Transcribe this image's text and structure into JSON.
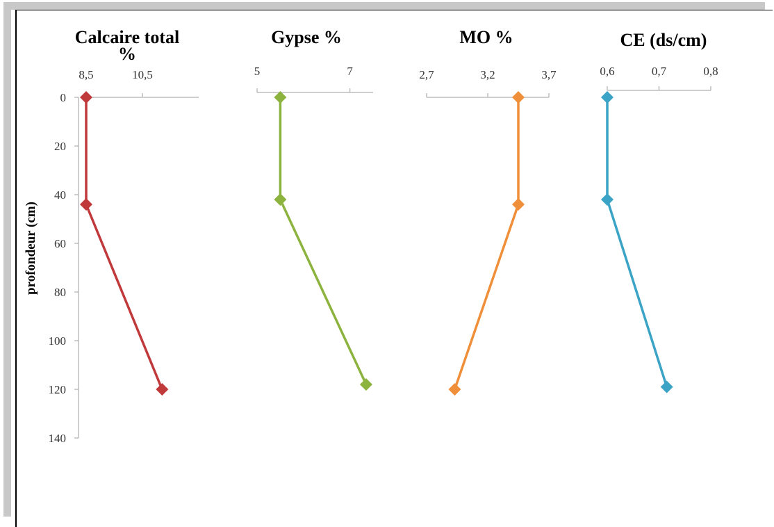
{
  "chart_data": {
    "type": "line",
    "ylabel": "profondeur (cm)",
    "yticks": [
      "0",
      "20",
      "40",
      "60",
      "80",
      "100",
      "120",
      "140"
    ],
    "ylim": [
      0,
      140
    ],
    "y_inverted": true,
    "panels": [
      {
        "title_lines": [
          "Calcaire total",
          "%"
        ],
        "xticks": [
          "8,5",
          "10,5"
        ],
        "xtick_values": [
          8.5,
          10.5
        ],
        "xlim": [
          8.5,
          12.5
        ],
        "color": "#c0393b",
        "points": [
          {
            "x": 8.5,
            "y": 0
          },
          {
            "x": 8.5,
            "y": 44
          },
          {
            "x": 11.2,
            "y": 120
          }
        ]
      },
      {
        "title_lines": [
          "Gypse %"
        ],
        "xticks": [
          "5",
          "7"
        ],
        "xtick_values": [
          5,
          7
        ],
        "xlim": [
          5,
          7.5
        ],
        "color": "#8db33f",
        "points": [
          {
            "x": 5.5,
            "y": 0
          },
          {
            "x": 5.5,
            "y": 42
          },
          {
            "x": 7.35,
            "y": 118
          }
        ]
      },
      {
        "title_lines": [
          "MO %"
        ],
        "xticks": [
          "2,7",
          "3,2",
          "3,7"
        ],
        "xtick_values": [
          2.7,
          3.2,
          3.7
        ],
        "xlim": [
          2.7,
          3.7
        ],
        "color": "#f08f3a",
        "points": [
          {
            "x": 3.45,
            "y": 0
          },
          {
            "x": 3.45,
            "y": 44
          },
          {
            "x": 2.93,
            "y": 120
          }
        ]
      },
      {
        "title_lines": [
          "CE (ds/cm)"
        ],
        "xticks": [
          "0,6",
          "0,7",
          "0,8"
        ],
        "xtick_values": [
          0.6,
          0.7,
          0.8
        ],
        "xlim": [
          0.6,
          0.8
        ],
        "color": "#3aa3c6",
        "points": [
          {
            "x": 0.6,
            "y": 0
          },
          {
            "x": 0.6,
            "y": 42
          },
          {
            "x": 0.715,
            "y": 119
          }
        ]
      }
    ]
  }
}
